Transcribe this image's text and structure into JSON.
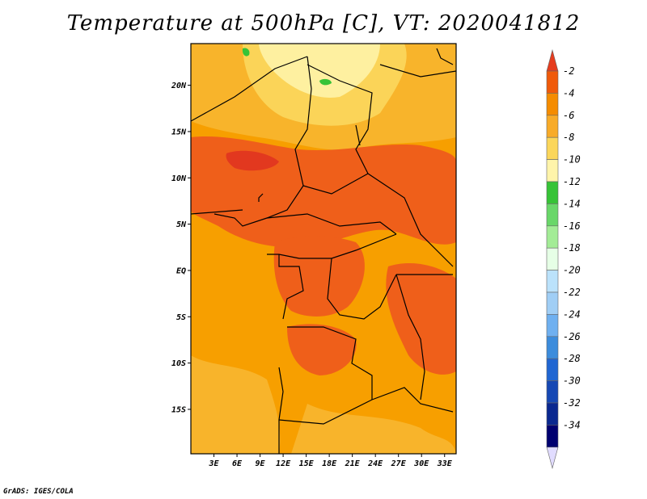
{
  "title": "Temperature at 500hPa [C], VT: 2020041812",
  "credit": "GrADS: IGES/COLA",
  "axes": {
    "lat_labels": [
      "20N",
      "15N",
      "10N",
      "5N",
      "EQ",
      "5S",
      "10S",
      "15S"
    ],
    "lat_values": [
      20,
      15,
      10,
      5,
      0,
      -5,
      -10,
      -15
    ],
    "lon_labels": [
      "3E",
      "6E",
      "9E",
      "12E",
      "15E",
      "18E",
      "21E",
      "24E",
      "27E",
      "30E",
      "33E"
    ],
    "lon_values": [
      3,
      6,
      9,
      12,
      15,
      18,
      21,
      24,
      27,
      30,
      33
    ],
    "lon_range": [
      0,
      34.5
    ],
    "lat_range": [
      -19.8,
      24.5
    ]
  },
  "legend": {
    "labels": [
      "-2",
      "-4",
      "-6",
      "-8",
      "-10",
      "-12",
      "-14",
      "-16",
      "-18",
      "-20",
      "-22",
      "-24",
      "-26",
      "-28",
      "-30",
      "-32",
      "-34"
    ],
    "colors": [
      "#e63c1e",
      "#f05a0a",
      "#f58c00",
      "#f8ab28",
      "#fbd65a",
      "#fff4aa",
      "#37c337",
      "#69d769",
      "#a3ec96",
      "#e6ffe6",
      "#bbe2fb",
      "#a0cef5",
      "#6fb0f0",
      "#3c8cdc",
      "#2066d2",
      "#1648b4",
      "#0a2890",
      "#000070",
      "#e1dcff"
    ]
  },
  "map": {
    "background_color": "#f79f00",
    "warm_color": "#ef5f1a",
    "hot_color": "#e2381f",
    "cool_color": "#f8b42b",
    "cooler_color": "#fbd458",
    "coolest_color": "#fef0a0",
    "green_color": "#37c337"
  }
}
